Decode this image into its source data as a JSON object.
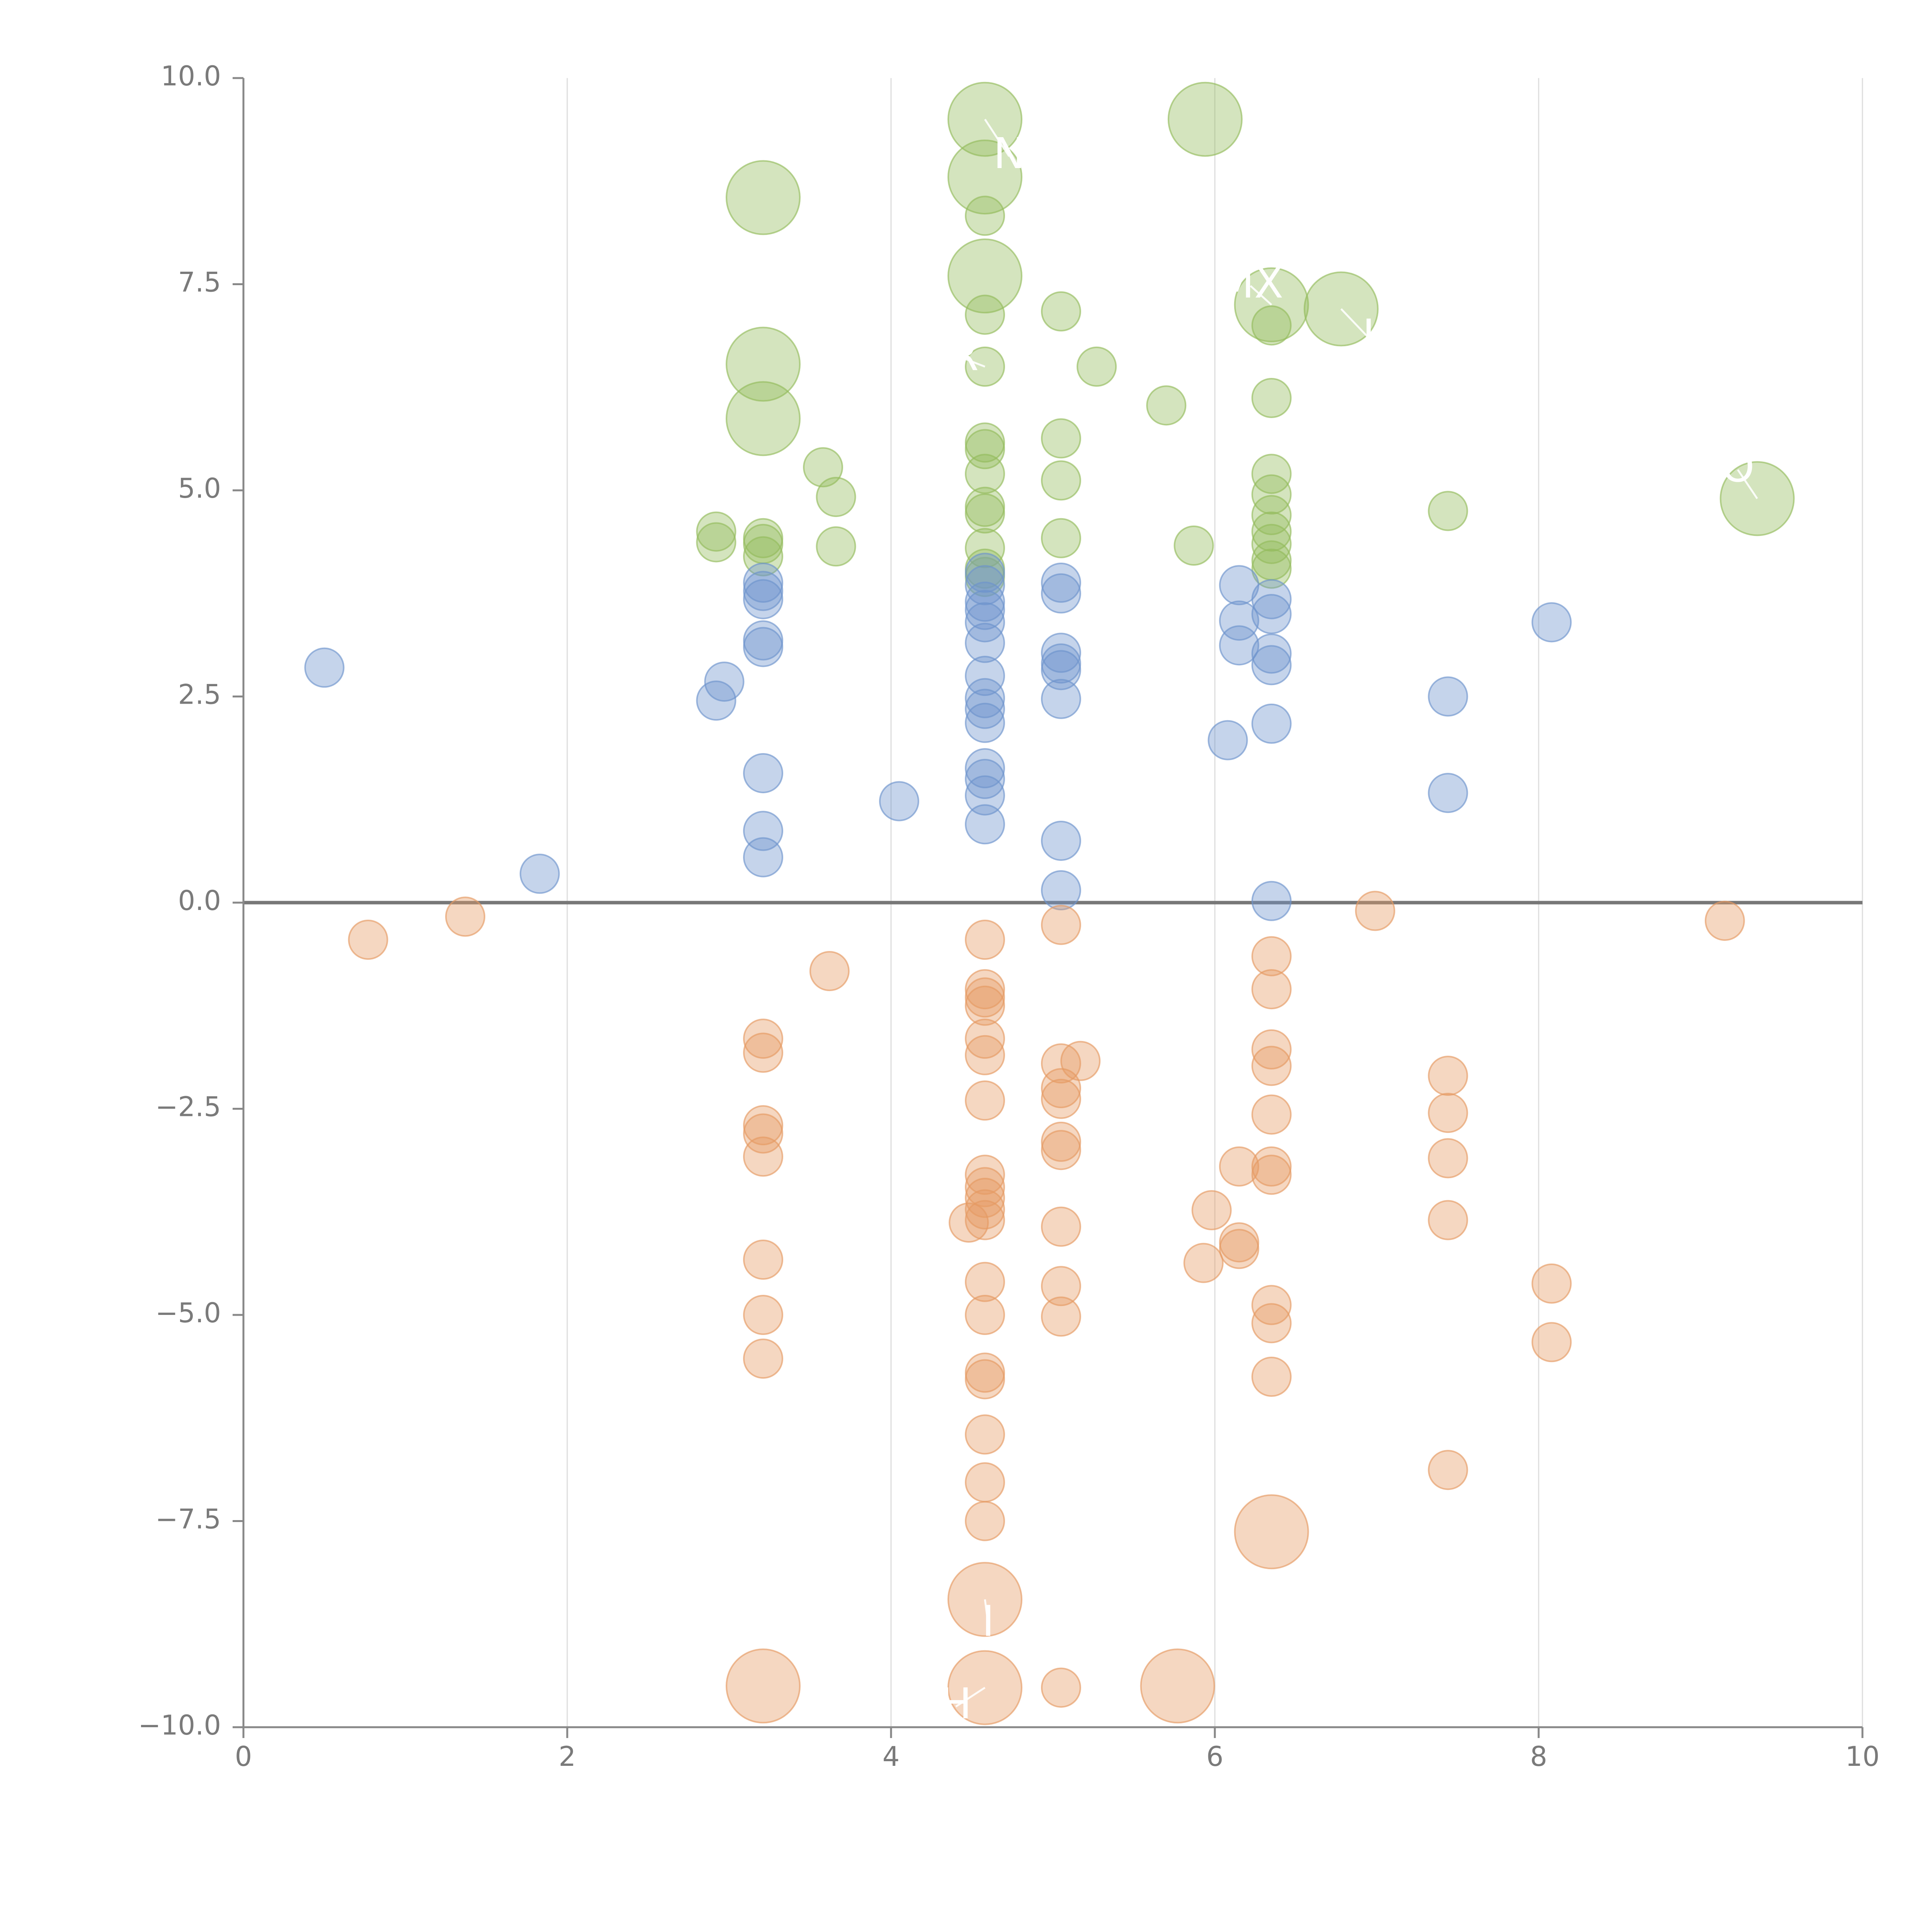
{
  "chart_data": {
    "type": "scatter",
    "title": "",
    "xlabel": "",
    "ylabel": "",
    "xlim": [
      0,
      10
    ],
    "ylim": [
      -10,
      10
    ],
    "grid": "vertical",
    "zero_line": true,
    "xticks": [
      0,
      2,
      4,
      6,
      8,
      10
    ],
    "xtick_labels": [
      "0",
      "2",
      "4",
      "6",
      "8",
      "10"
    ],
    "yticks": [
      -10,
      -7.5,
      -5,
      -2.5,
      0,
      2.5,
      5,
      7.5,
      10
    ],
    "ytick_labels": [
      "−10.0",
      "−7.5",
      "−5.0",
      "−2.5",
      "0.0",
      "2.5",
      "5.0",
      "7.5",
      "10.0"
    ],
    "series": [
      {
        "name": "green",
        "color": "#93bb5c",
        "points": [
          [
            4.58,
            9.5,
            3
          ],
          [
            4.58,
            8.8,
            3
          ],
          [
            3.21,
            8.55,
            3
          ],
          [
            4.58,
            8.33,
            1
          ],
          [
            4.58,
            7.6,
            3
          ],
          [
            4.58,
            7.13,
            1
          ],
          [
            4.58,
            6.5,
            1
          ],
          [
            3.21,
            6.53,
            3
          ],
          [
            3.21,
            5.87,
            3
          ],
          [
            4.58,
            5.58,
            1
          ],
          [
            4.58,
            5.5,
            1
          ],
          [
            4.58,
            5.2,
            1
          ],
          [
            4.58,
            4.8,
            1
          ],
          [
            4.58,
            4.72,
            1
          ],
          [
            4.58,
            4.3,
            1
          ],
          [
            4.58,
            4.05,
            1
          ],
          [
            4.58,
            3.95,
            1
          ],
          [
            3.21,
            4.42,
            1
          ],
          [
            3.21,
            4.35,
            1
          ],
          [
            3.21,
            4.2,
            1
          ],
          [
            2.92,
            4.5,
            1
          ],
          [
            2.92,
            4.37,
            1
          ],
          [
            3.58,
            5.28,
            1
          ],
          [
            3.66,
            4.92,
            1
          ],
          [
            3.66,
            4.32,
            1
          ],
          [
            5.05,
            7.17,
            1
          ],
          [
            5.27,
            6.5,
            1
          ],
          [
            5.05,
            5.63,
            1
          ],
          [
            5.05,
            5.12,
            1
          ],
          [
            5.05,
            4.42,
            1
          ],
          [
            5.94,
            9.5,
            3
          ],
          [
            5.7,
            6.03,
            1
          ],
          [
            5.87,
            4.33,
            1
          ],
          [
            6.35,
            7.25,
            3
          ],
          [
            6.35,
            7.0,
            1
          ],
          [
            6.35,
            6.12,
            1
          ],
          [
            6.35,
            5.2,
            1
          ],
          [
            6.35,
            4.95,
            1
          ],
          [
            6.35,
            4.7,
            1
          ],
          [
            6.35,
            4.5,
            1
          ],
          [
            6.35,
            4.35,
            1
          ],
          [
            6.35,
            4.15,
            1
          ],
          [
            6.35,
            4.05,
            1
          ],
          [
            6.78,
            7.2,
            3
          ],
          [
            7.44,
            4.75,
            1
          ],
          [
            9.35,
            4.9,
            3
          ]
        ]
      },
      {
        "name": "blue",
        "color": "#6d93cc",
        "points": [
          [
            0.5,
            2.85,
            1
          ],
          [
            1.83,
            0.35,
            1
          ],
          [
            2.92,
            2.45,
            1
          ],
          [
            2.97,
            2.68,
            1
          ],
          [
            3.21,
            3.88,
            1
          ],
          [
            3.21,
            3.78,
            1
          ],
          [
            3.21,
            3.68,
            1
          ],
          [
            3.21,
            3.18,
            1
          ],
          [
            3.21,
            3.1,
            1
          ],
          [
            3.21,
            1.57,
            1
          ],
          [
            3.21,
            0.87,
            1
          ],
          [
            3.21,
            0.55,
            1
          ],
          [
            4.05,
            1.23,
            1
          ],
          [
            4.58,
            4.0,
            1
          ],
          [
            4.58,
            3.85,
            1
          ],
          [
            4.58,
            3.65,
            1
          ],
          [
            4.58,
            3.55,
            1
          ],
          [
            4.58,
            3.4,
            1
          ],
          [
            4.58,
            3.15,
            1
          ],
          [
            4.58,
            2.75,
            1
          ],
          [
            4.58,
            2.48,
            1
          ],
          [
            4.58,
            2.35,
            1
          ],
          [
            4.58,
            2.18,
            1
          ],
          [
            4.58,
            1.63,
            1
          ],
          [
            4.58,
            1.5,
            1
          ],
          [
            4.58,
            1.3,
            1
          ],
          [
            4.58,
            0.95,
            1
          ],
          [
            5.05,
            3.88,
            1
          ],
          [
            5.05,
            3.75,
            1
          ],
          [
            5.05,
            3.03,
            1
          ],
          [
            5.05,
            2.9,
            1
          ],
          [
            5.05,
            2.82,
            1
          ],
          [
            5.05,
            2.47,
            1
          ],
          [
            5.05,
            0.75,
            1
          ],
          [
            5.05,
            0.15,
            1
          ],
          [
            6.08,
            1.97,
            1
          ],
          [
            6.15,
            3.85,
            1
          ],
          [
            6.15,
            3.42,
            1
          ],
          [
            6.15,
            3.12,
            1
          ],
          [
            6.35,
            3.68,
            1
          ],
          [
            6.35,
            3.5,
            1
          ],
          [
            6.35,
            3.02,
            1
          ],
          [
            6.35,
            2.88,
            1
          ],
          [
            6.35,
            2.17,
            1
          ],
          [
            6.35,
            0.02,
            1
          ],
          [
            7.44,
            2.5,
            1
          ],
          [
            7.44,
            1.33,
            1
          ],
          [
            8.08,
            3.4,
            1
          ]
        ]
      },
      {
        "name": "orange",
        "color": "#e59a63",
        "points": [
          [
            0.77,
            -0.45,
            1
          ],
          [
            1.37,
            -0.17,
            1
          ],
          [
            3.62,
            -0.83,
            1
          ],
          [
            3.21,
            -1.65,
            1
          ],
          [
            3.21,
            -1.82,
            1
          ],
          [
            3.21,
            -2.7,
            1
          ],
          [
            3.21,
            -2.8,
            1
          ],
          [
            3.21,
            -3.08,
            1
          ],
          [
            3.21,
            -4.33,
            1
          ],
          [
            3.21,
            -5.0,
            1
          ],
          [
            3.21,
            -5.53,
            1
          ],
          [
            3.21,
            -9.5,
            3
          ],
          [
            4.58,
            -0.45,
            1
          ],
          [
            4.58,
            -1.05,
            1
          ],
          [
            4.58,
            -1.15,
            1
          ],
          [
            4.58,
            -1.25,
            1
          ],
          [
            4.58,
            -1.65,
            1
          ],
          [
            4.58,
            -1.85,
            1
          ],
          [
            4.58,
            -2.4,
            1
          ],
          [
            4.58,
            -3.3,
            1
          ],
          [
            4.58,
            -3.45,
            1
          ],
          [
            4.58,
            -3.58,
            1
          ],
          [
            4.58,
            -3.72,
            1
          ],
          [
            4.58,
            -3.85,
            1
          ],
          [
            4.48,
            -3.88,
            1
          ],
          [
            4.58,
            -4.6,
            1
          ],
          [
            4.58,
            -5.0,
            1
          ],
          [
            4.58,
            -5.7,
            1
          ],
          [
            4.58,
            -5.78,
            1
          ],
          [
            4.58,
            -6.45,
            1
          ],
          [
            4.58,
            -7.03,
            1
          ],
          [
            4.58,
            -7.5,
            1
          ],
          [
            4.58,
            -8.45,
            3
          ],
          [
            4.58,
            -9.52,
            3
          ],
          [
            5.05,
            -0.27,
            1
          ],
          [
            5.05,
            -1.95,
            1
          ],
          [
            5.17,
            -1.92,
            1
          ],
          [
            5.05,
            -2.25,
            1
          ],
          [
            5.05,
            -2.38,
            1
          ],
          [
            5.05,
            -2.9,
            1
          ],
          [
            5.05,
            -3.0,
            1
          ],
          [
            5.05,
            -3.93,
            1
          ],
          [
            5.05,
            -4.65,
            1
          ],
          [
            5.05,
            -5.02,
            1
          ],
          [
            5.05,
            -9.52,
            1
          ],
          [
            5.77,
            -9.5,
            3
          ],
          [
            5.93,
            -4.37,
            1
          ],
          [
            5.98,
            -3.73,
            1
          ],
          [
            6.15,
            -3.2,
            1
          ],
          [
            6.15,
            -4.12,
            1
          ],
          [
            6.15,
            -4.2,
            1
          ],
          [
            6.35,
            -0.65,
            1
          ],
          [
            6.35,
            -1.05,
            1
          ],
          [
            6.35,
            -1.78,
            1
          ],
          [
            6.35,
            -1.98,
            1
          ],
          [
            6.35,
            -2.57,
            1
          ],
          [
            6.35,
            -3.2,
            1
          ],
          [
            6.35,
            -3.3,
            1
          ],
          [
            6.35,
            -4.88,
            1
          ],
          [
            6.35,
            -5.1,
            1
          ],
          [
            6.35,
            -5.75,
            1
          ],
          [
            6.35,
            -7.63,
            3
          ],
          [
            6.99,
            -0.1,
            1
          ],
          [
            7.44,
            -2.1,
            1
          ],
          [
            7.44,
            -2.55,
            1
          ],
          [
            7.44,
            -3.1,
            1
          ],
          [
            7.44,
            -3.85,
            1
          ],
          [
            7.44,
            -6.88,
            1
          ],
          [
            8.08,
            -4.62,
            1
          ],
          [
            8.08,
            -5.33,
            1
          ],
          [
            9.15,
            -0.22,
            1
          ]
        ]
      }
    ],
    "annotations": [
      {
        "text": "N",
        "x": 4.73,
        "y": 9.05,
        "from": [
          4.58,
          9.5
        ]
      },
      {
        "text": "MX",
        "x": 6.22,
        "y": 7.48,
        "from": [
          6.35,
          7.25
        ]
      },
      {
        "text": "R",
        "x": 4.45,
        "y": 6.6,
        "from": [
          4.58,
          6.5
        ]
      },
      {
        "text": "I",
        "x": 6.95,
        "y": 6.85,
        "from": [
          6.78,
          7.2
        ]
      },
      {
        "text": "O",
        "x": 9.23,
        "y": 5.25,
        "from": [
          9.35,
          4.9
        ]
      },
      {
        "text": "I",
        "x": 4.6,
        "y": -8.75,
        "from": [
          4.58,
          -8.45
        ]
      },
      {
        "text": "H",
        "x": 4.4,
        "y": -9.75,
        "from": [
          4.58,
          -9.52
        ]
      }
    ]
  }
}
